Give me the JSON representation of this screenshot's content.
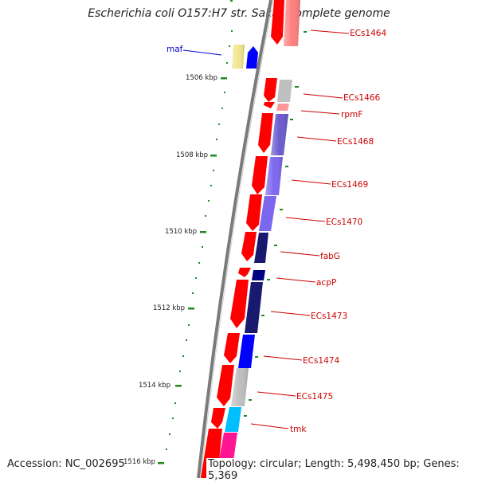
{
  "title": "Escherichia coli O157:H7 str. Sakai, complete genome",
  "footer": {
    "accession": "Accession: NC_002695",
    "summary": "Topology: circular; Length: 5,498,450 bp; Genes: 5,369"
  },
  "ticks": [
    {
      "label": "1506 kbp"
    },
    {
      "label": "1508 kbp"
    },
    {
      "label": "1510 kbp"
    },
    {
      "label": "1512 kbp"
    },
    {
      "label": "1514 kbp"
    },
    {
      "label": "1516 kbp"
    }
  ],
  "genes": [
    {
      "name": "maf",
      "color": "#0000cc"
    },
    {
      "name": "ECs1464",
      "color": "#cc0000"
    },
    {
      "name": "ECs1466",
      "color": "#cc0000"
    },
    {
      "name": "rpmF",
      "color": "#cc0000"
    },
    {
      "name": "ECs1468",
      "color": "#cc0000"
    },
    {
      "name": "ECs1469",
      "color": "#cc0000"
    },
    {
      "name": "ECs1470",
      "color": "#cc0000"
    },
    {
      "name": "fabG",
      "color": "#cc0000"
    },
    {
      "name": "acpP",
      "color": "#cc0000"
    },
    {
      "name": "ECs1473",
      "color": "#cc0000"
    },
    {
      "name": "ECs1474",
      "color": "#cc0000"
    },
    {
      "name": "ECs1475",
      "color": "#cc0000"
    },
    {
      "name": "tmk",
      "color": "#cc0000"
    }
  ],
  "colors": {
    "backbone": "#7a7a7a",
    "cds_forward": "#ff0000",
    "cds_reverse_maf": "#0000ff",
    "maf_cog": "#f0e68c",
    "tick_green": "#1e8a1e",
    "label_red": "#cc0000",
    "label_blue": "#0000cc"
  },
  "cog_colors": [
    "#ff7f7f",
    "#c0c0c0",
    "#ff9999",
    "#6a5acd",
    "#7b68ee",
    "#191970",
    "#000080",
    "#4682b4",
    "#0000ff",
    "#bebebe",
    "#00bfff",
    "#ff1493"
  ]
}
